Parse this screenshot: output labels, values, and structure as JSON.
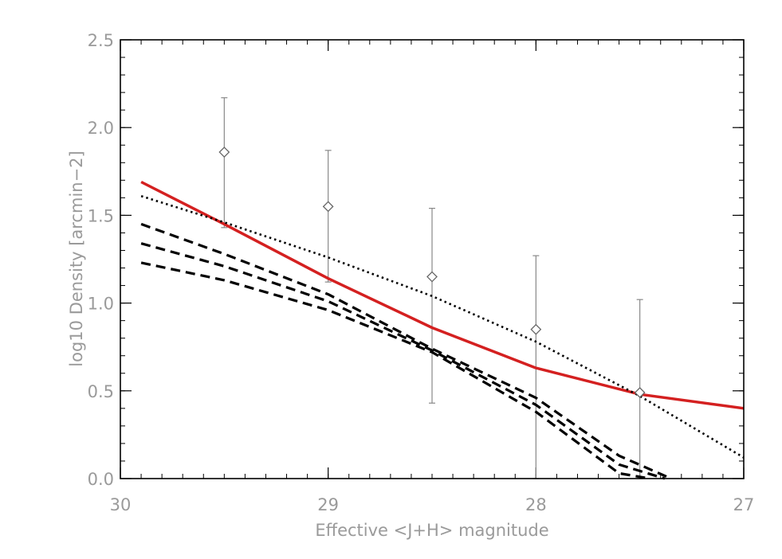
{
  "chart_data": {
    "type": "scatter",
    "title": "",
    "xlabel": "Effective <J+H> magnitude",
    "ylabel": "log10 Density [arcmin−2]",
    "xlim": [
      30,
      27
    ],
    "ylim": [
      0,
      2.5
    ],
    "x_ticks": [
      30,
      29,
      28,
      27
    ],
    "x_tick_labels": [
      "30",
      "29",
      "28",
      "27"
    ],
    "y_ticks": [
      0,
      0.5,
      1,
      1.5,
      2,
      2.5
    ],
    "y_tick_labels": [
      "0.0",
      "0.5",
      "1.0",
      "1.5",
      "2.0",
      "2.5"
    ],
    "grid": false,
    "legend": "none",
    "colors": {
      "curve": "#d42020",
      "points": "#888888",
      "lines": "#000000",
      "text": "#9a9a9a"
    },
    "points": {
      "marker": "diamond",
      "x": [
        29.5,
        29.0,
        28.5,
        28.0,
        27.5
      ],
      "y": [
        1.86,
        1.55,
        1.15,
        0.85,
        0.49
      ],
      "err_low": [
        0.43,
        0.43,
        0.72,
        0.85,
        0.49
      ],
      "err_high": [
        0.31,
        0.32,
        0.39,
        0.42,
        0.53
      ]
    },
    "series": [
      {
        "style": "solid",
        "color": "#d42020",
        "x": [
          29.9,
          29.5,
          29.0,
          28.5,
          28.0,
          27.5,
          27.0
        ],
        "y": [
          1.69,
          1.45,
          1.14,
          0.86,
          0.63,
          0.48,
          0.4
        ]
      },
      {
        "style": "dotted",
        "color": "#000000",
        "x": [
          29.9,
          29.5,
          29.0,
          28.5,
          28.0,
          27.5,
          27.0
        ],
        "y": [
          1.61,
          1.46,
          1.26,
          1.04,
          0.78,
          0.47,
          0.12
        ]
      },
      {
        "style": "dashed",
        "color": "#000000",
        "x": [
          29.9,
          29.5,
          29.0,
          28.5,
          28.0,
          27.6,
          27.35
        ],
        "y": [
          1.45,
          1.28,
          1.05,
          0.74,
          0.46,
          0.13,
          0.0
        ]
      },
      {
        "style": "dashed",
        "color": "#000000",
        "x": [
          29.9,
          29.5,
          29.0,
          28.5,
          28.0,
          27.6,
          27.38
        ],
        "y": [
          1.34,
          1.21,
          1.01,
          0.73,
          0.42,
          0.08,
          0.0
        ]
      },
      {
        "style": "dashed",
        "color": "#000000",
        "x": [
          29.9,
          29.5,
          29.0,
          28.5,
          28.0,
          27.6,
          27.45
        ],
        "y": [
          1.23,
          1.13,
          0.96,
          0.72,
          0.38,
          0.03,
          0.0
        ]
      }
    ]
  }
}
